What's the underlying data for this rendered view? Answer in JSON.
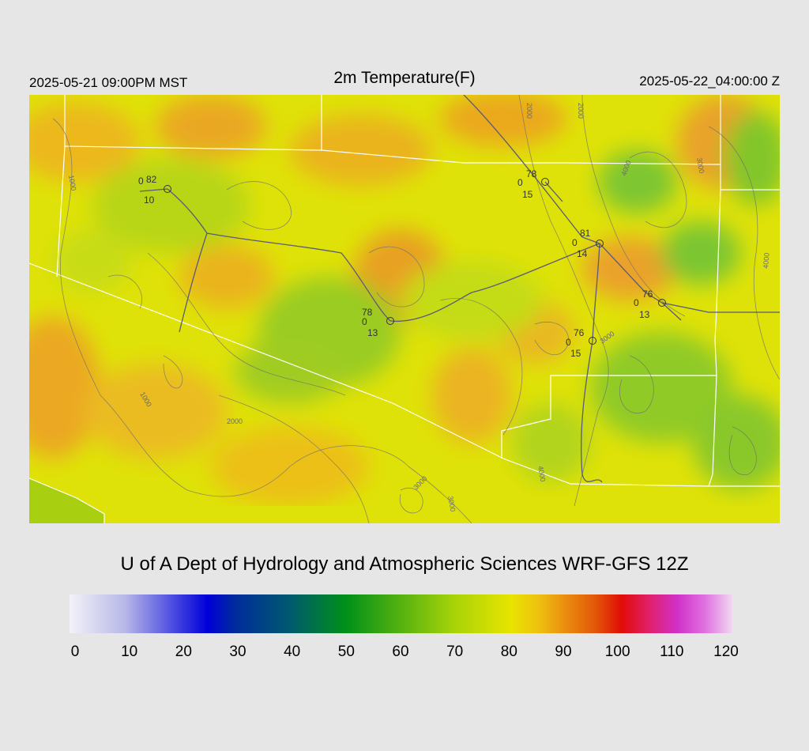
{
  "header": {
    "title": "2m Temperature(F)",
    "local_time": "2025-05-21 09:00PM MST",
    "utc_time": "2025-05-22_04:00:00 Z"
  },
  "credit": "U of A Dept of Hydrology and Atmospheric Sciences WRF-GFS 12Z",
  "contour_labels": [
    "1000",
    "1000",
    "2000",
    "2000",
    "2000",
    "3000",
    "3000",
    "3000",
    "3000",
    "4000",
    "4000",
    "4000"
  ],
  "stations": [
    {
      "id": "s1",
      "temp": "82",
      "calm": "0",
      "dew": "10"
    },
    {
      "id": "s2",
      "temp": "78",
      "calm": "0",
      "dew": "15"
    },
    {
      "id": "s3",
      "temp": "81",
      "calm": "0",
      "dew": "14"
    },
    {
      "id": "s4",
      "temp": "78",
      "calm": "0",
      "dew": "13"
    },
    {
      "id": "s5",
      "temp": "76",
      "calm": "0",
      "dew": "13"
    },
    {
      "id": "s6",
      "temp": "76",
      "calm": "0",
      "dew": "15"
    }
  ],
  "legend": {
    "ticks": [
      "0",
      "10",
      "20",
      "30",
      "40",
      "50",
      "60",
      "70",
      "80",
      "90",
      "100",
      "110",
      "120"
    ],
    "min": 0,
    "max": 120,
    "stops": [
      {
        "v": 0,
        "c": "#f2f2f8"
      },
      {
        "v": 10,
        "c": "#b8b8e8"
      },
      {
        "v": 20,
        "c": "#3c3ce0"
      },
      {
        "v": 25,
        "c": "#0000d8"
      },
      {
        "v": 30,
        "c": "#002c9c"
      },
      {
        "v": 40,
        "c": "#005a6e"
      },
      {
        "v": 50,
        "c": "#009018"
      },
      {
        "v": 60,
        "c": "#56b210"
      },
      {
        "v": 70,
        "c": "#aad408"
      },
      {
        "v": 80,
        "c": "#e8e400"
      },
      {
        "v": 85,
        "c": "#eec010"
      },
      {
        "v": 90,
        "c": "#ea8a10"
      },
      {
        "v": 95,
        "c": "#e25a08"
      },
      {
        "v": 100,
        "c": "#e00c08"
      },
      {
        "v": 105,
        "c": "#e0206c"
      },
      {
        "v": 110,
        "c": "#d030c8"
      },
      {
        "v": 115,
        "c": "#e070e0"
      },
      {
        "v": 120,
        "c": "#f0d8f0"
      }
    ]
  }
}
